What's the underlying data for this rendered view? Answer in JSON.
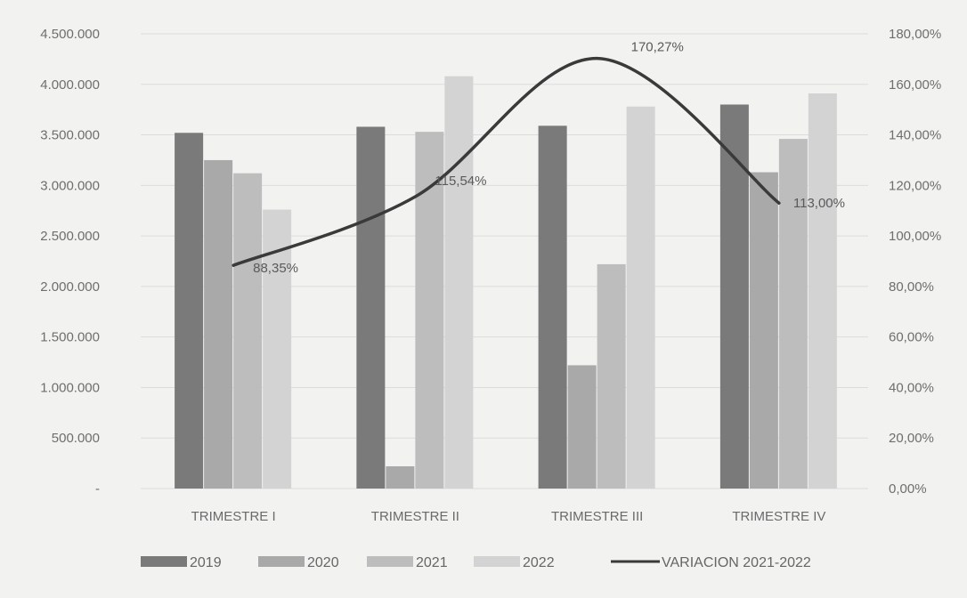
{
  "chart_data": {
    "type": "bar",
    "categories": [
      "TRIMESTRE I",
      "TRIMESTRE II",
      "TRIMESTRE III",
      "TRIMESTRE IV"
    ],
    "series": [
      {
        "name": "2019",
        "type": "bar",
        "axis": "left",
        "color": "#7a7a7a",
        "values": [
          3520000,
          3580000,
          3590000,
          3800000
        ]
      },
      {
        "name": "2020",
        "type": "bar",
        "axis": "left",
        "color": "#a9a9a9",
        "values": [
          3250000,
          220000,
          1220000,
          3130000
        ]
      },
      {
        "name": "2021",
        "type": "bar",
        "axis": "left",
        "color": "#bdbdbd",
        "values": [
          3120000,
          3530000,
          2220000,
          3460000
        ]
      },
      {
        "name": "2022",
        "type": "bar",
        "axis": "left",
        "color": "#d3d3d3",
        "values": [
          2760000,
          4080000,
          3780000,
          3910000
        ]
      },
      {
        "name": "VARIACION 2021-2022",
        "type": "line",
        "axis": "right",
        "color": "#3a3a3a",
        "values": [
          88.35,
          115.54,
          170.27,
          113.0
        ]
      }
    ],
    "data_labels": [
      "88,35%",
      "115,54%",
      "170,27%",
      "113,00%"
    ],
    "y_left": {
      "ylim": [
        0,
        4500000
      ],
      "tick_labels": [
        "-",
        "500.000",
        "1.000.000",
        "1.500.000",
        "2.000.000",
        "2.500.000",
        "3.000.000",
        "3.500.000",
        "4.000.000",
        "4.500.000"
      ]
    },
    "y_right": {
      "ylim": [
        0,
        180
      ],
      "tick_labels": [
        "0,00%",
        "20,00%",
        "40,00%",
        "60,00%",
        "80,00%",
        "100,00%",
        "120,00%",
        "140,00%",
        "160,00%",
        "180,00%"
      ]
    },
    "grid": true,
    "legend_position": "bottom",
    "legend": [
      "2019",
      "2020",
      "2021",
      "2022",
      "VARIACION 2021-2022"
    ]
  }
}
